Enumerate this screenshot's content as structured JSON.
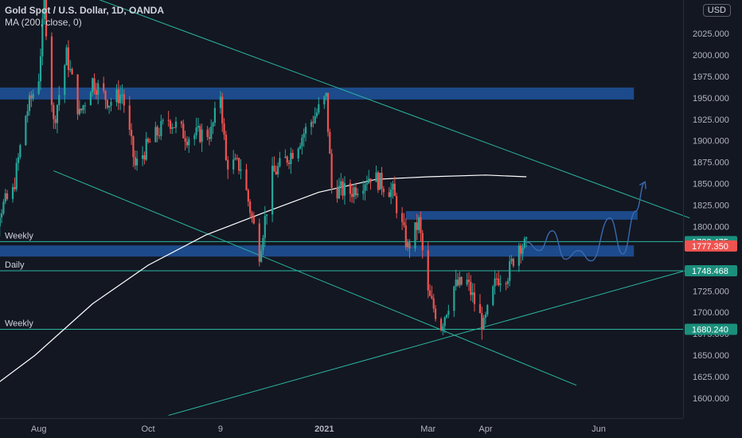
{
  "legend": {
    "symbol": "Gold Spot / U.S. Dollar, 1D, OANDA",
    "indicator": "MA (200, close, 0)"
  },
  "currency_badge": "USD",
  "colors": {
    "background": "#131722",
    "up_candle": "#26a69a",
    "down_candle": "#ef5350",
    "ma_line": "#ffffff",
    "channel_line": "#2bb6a0",
    "zone_fill": "#1c4a8a",
    "forecast_path": "#3a6ab0",
    "axis_text": "#b2b5be",
    "last_price_badge": "#ef5350",
    "level_badge": "#1a8f7c"
  },
  "chart_data": {
    "type": "candlestick",
    "title": "Gold Spot / U.S. Dollar, 1D, OANDA",
    "xlabel": "",
    "ylabel": "",
    "ylim": [
      1580,
      2080
    ],
    "grid": false,
    "x_ticks": [
      "Aug",
      "Oct",
      "9",
      "2021",
      "Mar",
      "Apr",
      "Jun"
    ],
    "y_ticks": [
      1600,
      1625,
      1650,
      1675,
      1700,
      1725,
      1750,
      1775,
      1800,
      1825,
      1850,
      1875,
      1900,
      1925,
      1950,
      1975,
      2000,
      2025
    ],
    "y_ticks_labels": [
      "1600.000",
      "1625.000",
      "1650.000",
      "1675.000",
      "1700.000",
      "1725.000",
      "1750.000",
      "1775.000",
      "1800.000",
      "1825.000",
      "1850.000",
      "1875.000",
      "1900.000",
      "1925.000",
      "1950.000",
      "1975.000",
      "2000.000",
      "2025.000"
    ],
    "price_path": [
      [
        "2020-07-01",
        1785
      ],
      [
        "2020-07-10",
        1810
      ],
      [
        "2020-07-20",
        1840
      ],
      [
        "2020-07-27",
        1930
      ],
      [
        "2020-08-03",
        1975
      ],
      [
        "2020-08-06",
        2060
      ],
      [
        "2020-08-11",
        1920
      ],
      [
        "2020-08-18",
        2000
      ],
      [
        "2020-08-25",
        1930
      ],
      [
        "2020-09-01",
        1970
      ],
      [
        "2020-09-10",
        1945
      ],
      [
        "2020-09-17",
        1955
      ],
      [
        "2020-09-24",
        1870
      ],
      [
        "2020-10-01",
        1895
      ],
      [
        "2020-10-12",
        1925
      ],
      [
        "2020-10-22",
        1905
      ],
      [
        "2020-11-04",
        1910
      ],
      [
        "2020-11-09",
        1955
      ],
      [
        "2020-11-12",
        1875
      ],
      [
        "2020-11-20",
        1870
      ],
      [
        "2020-11-30",
        1770
      ],
      [
        "2020-12-07",
        1860
      ],
      [
        "2020-12-17",
        1885
      ],
      [
        "2021-01-05",
        1950
      ],
      [
        "2021-01-08",
        1845
      ],
      [
        "2021-01-18",
        1840
      ],
      [
        "2021-01-29",
        1860
      ],
      [
        "2021-02-10",
        1840
      ],
      [
        "2021-02-18",
        1775
      ],
      [
        "2021-02-24",
        1805
      ],
      [
        "2021-03-01",
        1720
      ],
      [
        "2021-03-08",
        1685
      ],
      [
        "2021-03-15",
        1730
      ],
      [
        "2021-03-22",
        1735
      ],
      [
        "2021-03-31",
        1683
      ],
      [
        "2021-04-07",
        1740
      ],
      [
        "2021-04-13",
        1745
      ],
      [
        "2021-04-19",
        1780
      ],
      [
        "2021-04-23",
        1777
      ]
    ],
    "ma200_path": [
      [
        "2020-07-01",
        1600
      ],
      [
        "2020-08-01",
        1650
      ],
      [
        "2020-09-01",
        1710
      ],
      [
        "2020-10-01",
        1755
      ],
      [
        "2020-11-01",
        1790
      ],
      [
        "2020-12-01",
        1815
      ],
      [
        "2021-01-01",
        1840
      ],
      [
        "2021-02-01",
        1855
      ],
      [
        "2021-03-01",
        1858
      ],
      [
        "2021-04-01",
        1860
      ],
      [
        "2021-04-23",
        1858
      ]
    ],
    "zones": [
      {
        "from": 1948,
        "to": 1962,
        "start": "2020-07-01",
        "end": "2021-06-20"
      },
      {
        "from": 1808,
        "to": 1818,
        "start": "2021-02-17",
        "end": "2021-06-22"
      },
      {
        "from": 1765,
        "to": 1778,
        "start": "2020-07-01",
        "end": "2021-06-20"
      }
    ],
    "horizontal_levels": [
      {
        "price": 1782.475,
        "label": "Weekly",
        "badge": "1782.475"
      },
      {
        "price": 1748.468,
        "label": "Daily",
        "badge": "1748.468"
      },
      {
        "price": 1680.24,
        "label": "Weekly",
        "badge": "1680.240"
      }
    ],
    "last_price": 1777.35,
    "last_price_badge": "1777.350",
    "trendlines": [
      {
        "from": [
          "2020-07-22",
          2100
        ],
        "to": [
          "2021-07-20",
          1810
        ]
      },
      {
        "from": [
          "2020-08-11",
          1865
        ],
        "to": [
          "2021-05-20",
          1615
        ]
      },
      {
        "from": [
          "2020-10-12",
          1580
        ],
        "to": [
          "2021-07-20",
          1750
        ]
      }
    ],
    "forecast_path": [
      [
        "2021-04-23",
        1782
      ],
      [
        "2021-04-30",
        1772
      ],
      [
        "2021-05-07",
        1795
      ],
      [
        "2021-05-14",
        1762
      ],
      [
        "2021-05-21",
        1772
      ],
      [
        "2021-05-28",
        1760
      ],
      [
        "2021-06-07",
        1810
      ],
      [
        "2021-06-14",
        1768
      ],
      [
        "2021-06-21",
        1818
      ],
      [
        "2021-06-26",
        1852
      ]
    ]
  }
}
